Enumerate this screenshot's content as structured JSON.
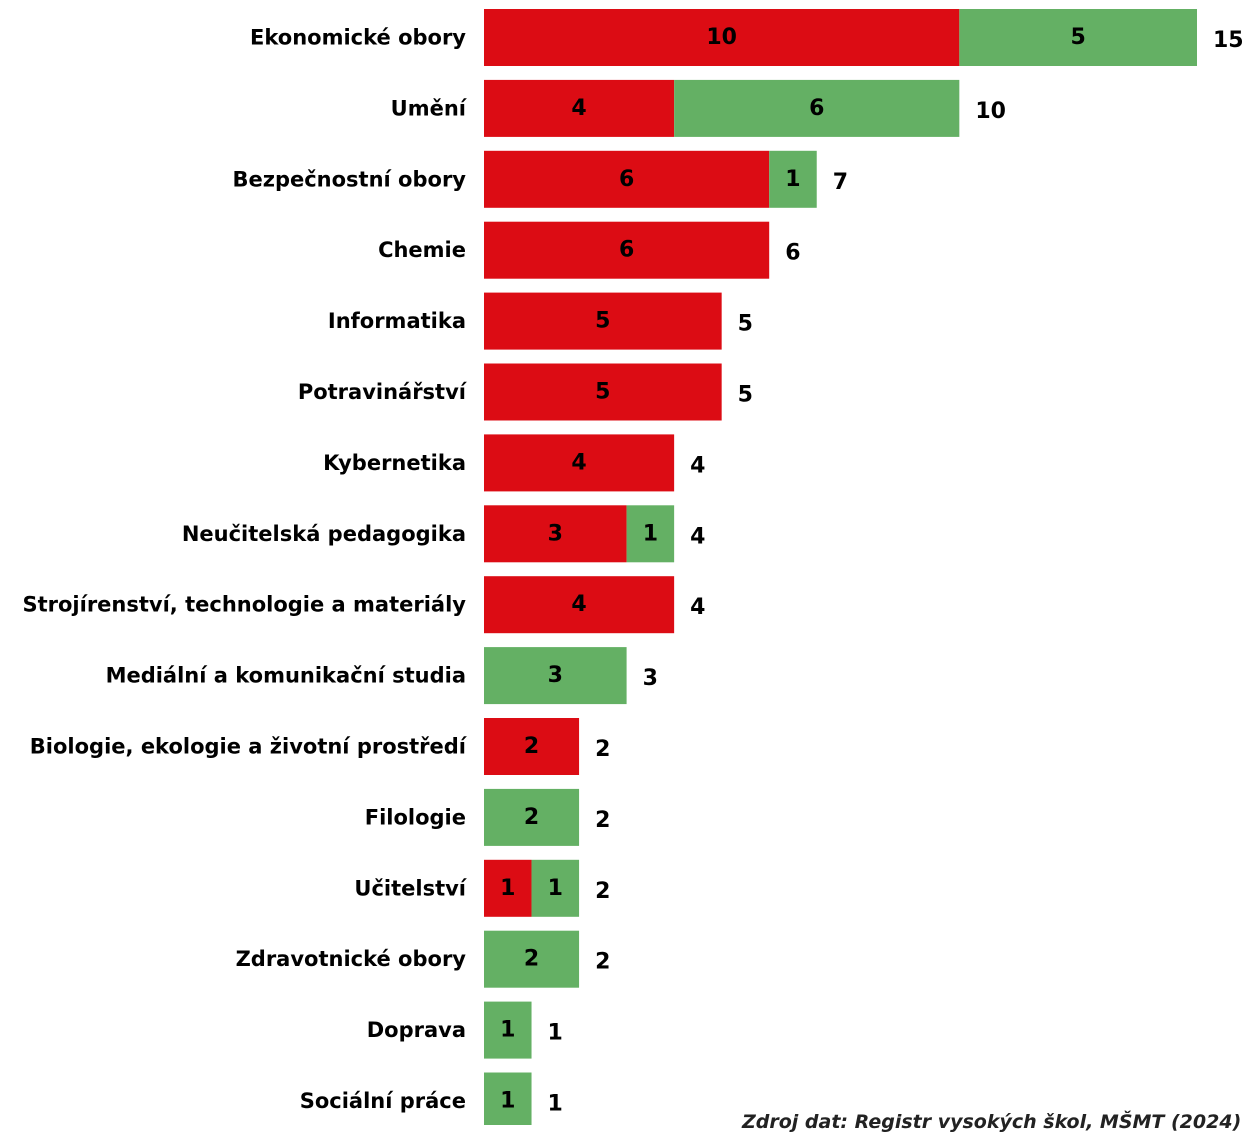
{
  "chart_data": {
    "type": "bar",
    "orientation": "horizontal",
    "stacked": true,
    "categories": [
      "Ekonomické obory",
      "Umění",
      "Bezpečnostní obory",
      "Chemie",
      "Informatika",
      "Potravinářství",
      "Kybernetika",
      "Neučitelská pedagogika",
      "Strojírenství, technologie a materiály",
      "Mediální a komunikační studia",
      "Biologie, ekologie a životní prostředí",
      "Filologie",
      "Učitelství",
      "Zdravotnické obory",
      "Doprava",
      "Sociální práce"
    ],
    "series": [
      {
        "color": "#dc0c14",
        "values": [
          10,
          4,
          6,
          6,
          5,
          5,
          4,
          3,
          4,
          0,
          2,
          0,
          1,
          0,
          0,
          0
        ]
      },
      {
        "color": "#64b064",
        "values": [
          5,
          6,
          1,
          0,
          0,
          0,
          0,
          1,
          0,
          3,
          0,
          2,
          1,
          2,
          1,
          1
        ]
      }
    ],
    "totals": [
      15,
      10,
      7,
      6,
      5,
      5,
      4,
      4,
      4,
      3,
      2,
      2,
      2,
      2,
      1,
      1
    ],
    "xlim": [
      0,
      15
    ],
    "grid": false,
    "legend": "none",
    "title": "",
    "xlabel": "",
    "ylabel": ""
  },
  "source_note": "Zdroj dat: Registr vysokých škol, MŠMT (2024)"
}
